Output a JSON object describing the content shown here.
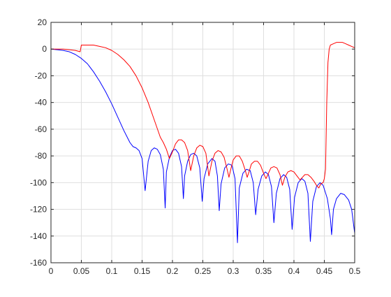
{
  "chart_data": {
    "type": "line",
    "title": "",
    "xlabel": "",
    "ylabel": "",
    "xlim": [
      0,
      0.5
    ],
    "ylim": [
      -160,
      20
    ],
    "grid": true,
    "legend": "none",
    "xticks": [
      0,
      0.05,
      0.1,
      0.15,
      0.2,
      0.25,
      0.3,
      0.35,
      0.4,
      0.45,
      0.5
    ],
    "xtick_labels": [
      "0",
      "0.05",
      "0.1",
      "0.15",
      "0.2",
      "0.25",
      "0.3",
      "0.35",
      "0.4",
      "0.45",
      "0.5"
    ],
    "yticks": [
      20,
      0,
      -20,
      -40,
      -60,
      -80,
      -100,
      -120,
      -140,
      -160
    ],
    "ytick_labels": [
      "20",
      "0",
      "-20",
      "-40",
      "-60",
      "-80",
      "-100",
      "-120",
      "-140",
      "-160"
    ],
    "series": [
      {
        "color": "#0000ff",
        "points": [
          [
            0.0,
            0
          ],
          [
            0.01,
            -0.5
          ],
          [
            0.02,
            -1
          ],
          [
            0.03,
            -2
          ],
          [
            0.04,
            -4
          ],
          [
            0.05,
            -7
          ],
          [
            0.06,
            -11
          ],
          [
            0.07,
            -17
          ],
          [
            0.08,
            -24
          ],
          [
            0.09,
            -32
          ],
          [
            0.1,
            -41
          ],
          [
            0.11,
            -51
          ],
          [
            0.12,
            -61
          ],
          [
            0.13,
            -70
          ],
          [
            0.135,
            -73
          ],
          [
            0.14,
            -74
          ],
          [
            0.145,
            -76
          ],
          [
            0.15,
            -82
          ],
          [
            0.155,
            -106
          ],
          [
            0.16,
            -84
          ],
          [
            0.165,
            -76
          ],
          [
            0.17,
            -74
          ],
          [
            0.175,
            -75
          ],
          [
            0.18,
            -79
          ],
          [
            0.185,
            -90
          ],
          [
            0.188,
            -119
          ],
          [
            0.19,
            -92
          ],
          [
            0.195,
            -81
          ],
          [
            0.2,
            -76
          ],
          [
            0.205,
            -75
          ],
          [
            0.21,
            -78
          ],
          [
            0.215,
            -88
          ],
          [
            0.218,
            -112
          ],
          [
            0.22,
            -95
          ],
          [
            0.225,
            -84
          ],
          [
            0.23,
            -79
          ],
          [
            0.235,
            -78
          ],
          [
            0.24,
            -80
          ],
          [
            0.245,
            -89
          ],
          [
            0.249,
            -114
          ],
          [
            0.252,
            -97
          ],
          [
            0.258,
            -86
          ],
          [
            0.265,
            -82
          ],
          [
            0.27,
            -84
          ],
          [
            0.274,
            -95
          ],
          [
            0.277,
            -121
          ],
          [
            0.28,
            -101
          ],
          [
            0.286,
            -89
          ],
          [
            0.292,
            -86
          ],
          [
            0.298,
            -87
          ],
          [
            0.303,
            -97
          ],
          [
            0.307,
            -145
          ],
          [
            0.31,
            -104
          ],
          [
            0.316,
            -93
          ],
          [
            0.322,
            -90
          ],
          [
            0.328,
            -91
          ],
          [
            0.333,
            -100
          ],
          [
            0.337,
            -124
          ],
          [
            0.341,
            -105
          ],
          [
            0.347,
            -95
          ],
          [
            0.353,
            -92
          ],
          [
            0.358,
            -94
          ],
          [
            0.363,
            -103
          ],
          [
            0.367,
            -130
          ],
          [
            0.371,
            -108
          ],
          [
            0.377,
            -97
          ],
          [
            0.383,
            -94
          ],
          [
            0.388,
            -96
          ],
          [
            0.393,
            -105
          ],
          [
            0.397,
            -135
          ],
          [
            0.401,
            -111
          ],
          [
            0.407,
            -100
          ],
          [
            0.413,
            -97
          ],
          [
            0.418,
            -99
          ],
          [
            0.423,
            -108
          ],
          [
            0.427,
            -144
          ],
          [
            0.431,
            -114
          ],
          [
            0.437,
            -103
          ],
          [
            0.443,
            -100
          ],
          [
            0.448,
            -102
          ],
          [
            0.455,
            -112
          ],
          [
            0.46,
            -127
          ],
          [
            0.462,
            -139
          ],
          [
            0.465,
            -120
          ],
          [
            0.47,
            -112
          ],
          [
            0.477,
            -108
          ],
          [
            0.483,
            -109
          ],
          [
            0.49,
            -113
          ],
          [
            0.495,
            -120
          ],
          [
            0.5,
            -138
          ]
        ]
      },
      {
        "color": "#ff0000",
        "points": [
          [
            0.0,
            0
          ],
          [
            0.01,
            0
          ],
          [
            0.02,
            0
          ],
          [
            0.03,
            -0.5
          ],
          [
            0.04,
            -1
          ],
          [
            0.048,
            -2
          ],
          [
            0.05,
            3
          ],
          [
            0.06,
            3
          ],
          [
            0.07,
            3
          ],
          [
            0.08,
            2
          ],
          [
            0.09,
            1
          ],
          [
            0.1,
            -1
          ],
          [
            0.11,
            -4
          ],
          [
            0.12,
            -8
          ],
          [
            0.13,
            -13
          ],
          [
            0.14,
            -20
          ],
          [
            0.15,
            -29
          ],
          [
            0.16,
            -40
          ],
          [
            0.17,
            -53
          ],
          [
            0.18,
            -66
          ],
          [
            0.185,
            -70
          ],
          [
            0.19,
            -75
          ],
          [
            0.195,
            -82
          ],
          [
            0.2,
            -77
          ],
          [
            0.205,
            -71
          ],
          [
            0.21,
            -68
          ],
          [
            0.215,
            -68
          ],
          [
            0.22,
            -70
          ],
          [
            0.225,
            -76
          ],
          [
            0.23,
            -91
          ],
          [
            0.235,
            -80
          ],
          [
            0.24,
            -74
          ],
          [
            0.245,
            -72
          ],
          [
            0.25,
            -73
          ],
          [
            0.255,
            -78
          ],
          [
            0.26,
            -95
          ],
          [
            0.265,
            -84
          ],
          [
            0.27,
            -78
          ],
          [
            0.275,
            -76
          ],
          [
            0.28,
            -77
          ],
          [
            0.285,
            -81
          ],
          [
            0.29,
            -90
          ],
          [
            0.293,
            -96
          ],
          [
            0.296,
            -90
          ],
          [
            0.3,
            -83
          ],
          [
            0.305,
            -80
          ],
          [
            0.31,
            -80
          ],
          [
            0.315,
            -84
          ],
          [
            0.32,
            -91
          ],
          [
            0.323,
            -96
          ],
          [
            0.326,
            -92
          ],
          [
            0.33,
            -86
          ],
          [
            0.335,
            -84
          ],
          [
            0.34,
            -84
          ],
          [
            0.345,
            -87
          ],
          [
            0.35,
            -93
          ],
          [
            0.354,
            -97
          ],
          [
            0.358,
            -93
          ],
          [
            0.362,
            -89
          ],
          [
            0.367,
            -88
          ],
          [
            0.372,
            -89
          ],
          [
            0.377,
            -94
          ],
          [
            0.381,
            -102
          ],
          [
            0.385,
            -96
          ],
          [
            0.39,
            -92
          ],
          [
            0.395,
            -91
          ],
          [
            0.4,
            -92
          ],
          [
            0.405,
            -95
          ],
          [
            0.41,
            -98
          ],
          [
            0.414,
            -96
          ],
          [
            0.418,
            -94
          ],
          [
            0.423,
            -94
          ],
          [
            0.428,
            -96
          ],
          [
            0.433,
            -99
          ],
          [
            0.437,
            -102
          ],
          [
            0.441,
            -104
          ],
          [
            0.444,
            -101
          ],
          [
            0.448,
            -100
          ],
          [
            0.45,
            -97
          ],
          [
            0.452,
            -90
          ],
          [
            0.454,
            -40
          ],
          [
            0.456,
            -10
          ],
          [
            0.458,
            0
          ],
          [
            0.46,
            3
          ],
          [
            0.465,
            4
          ],
          [
            0.47,
            5
          ],
          [
            0.475,
            5
          ],
          [
            0.48,
            5
          ],
          [
            0.485,
            4
          ],
          [
            0.49,
            3
          ],
          [
            0.495,
            2
          ],
          [
            0.5,
            1
          ]
        ]
      }
    ]
  }
}
